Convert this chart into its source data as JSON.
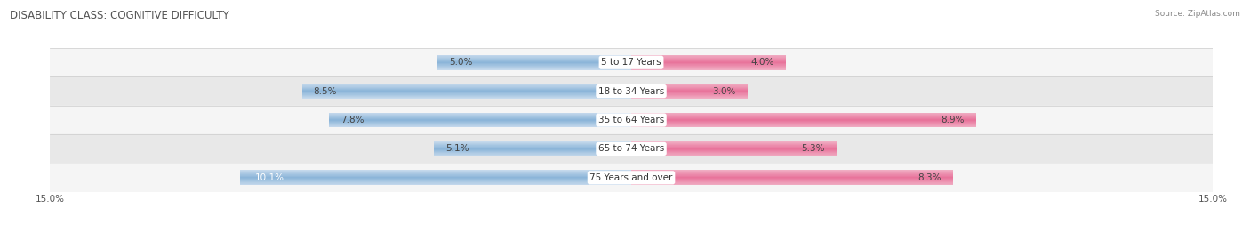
{
  "title": "DISABILITY CLASS: COGNITIVE DIFFICULTY",
  "source_text": "Source: ZipAtlas.com",
  "categories": [
    "5 to 17 Years",
    "18 to 34 Years",
    "35 to 64 Years",
    "65 to 74 Years",
    "75 Years and over"
  ],
  "male_values": [
    5.0,
    8.5,
    7.8,
    5.1,
    10.1
  ],
  "female_values": [
    4.0,
    3.0,
    8.9,
    5.3,
    8.3
  ],
  "x_max": 15.0,
  "male_color": "#8ab4d8",
  "male_color_light": "#c5d9ec",
  "female_color": "#e8729a",
  "female_color_light": "#f0adc3",
  "title_fontsize": 8.5,
  "source_fontsize": 6.5,
  "label_fontsize": 7.5,
  "tick_fontsize": 7.5,
  "category_fontsize": 7.5,
  "bar_height": 0.52,
  "background_color": "#ffffff",
  "row_bg_even": "#f5f5f5",
  "row_bg_odd": "#e8e8e8",
  "row_border_color": "#cccccc"
}
